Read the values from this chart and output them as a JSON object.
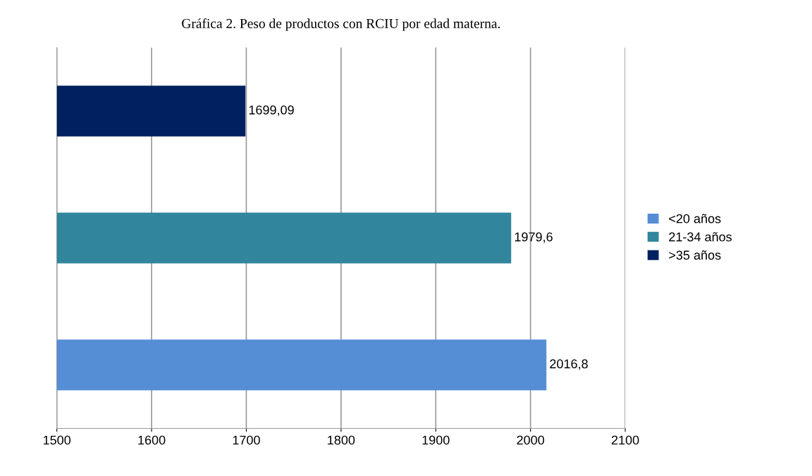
{
  "chart_data": {
    "type": "bar",
    "orientation": "horizontal",
    "title": "Gráfica 2. Peso de productos con RCIU por edad materna.",
    "categories": [
      null,
      null,
      null
    ],
    "series": [
      {
        "name": "<20 años",
        "color": "#558ed5",
        "values": [
          null,
          null,
          2016.8
        ],
        "value_labels": [
          null,
          null,
          "2016,8"
        ]
      },
      {
        "name": "21-34 años",
        "color": "#31859c",
        "values": [
          null,
          1979.6,
          null
        ],
        "value_labels": [
          null,
          "1979,6",
          null
        ]
      },
      {
        "name": ">35 años",
        "color": "#002060",
        "values": [
          1699.09,
          null,
          null
        ],
        "value_labels": [
          "1699,09",
          null,
          null
        ]
      }
    ],
    "xlim": [
      1500,
      2100
    ],
    "xticks": [
      1500,
      1600,
      1700,
      1800,
      1900,
      2000,
      2100
    ],
    "grid": "x",
    "legend": "right"
  }
}
